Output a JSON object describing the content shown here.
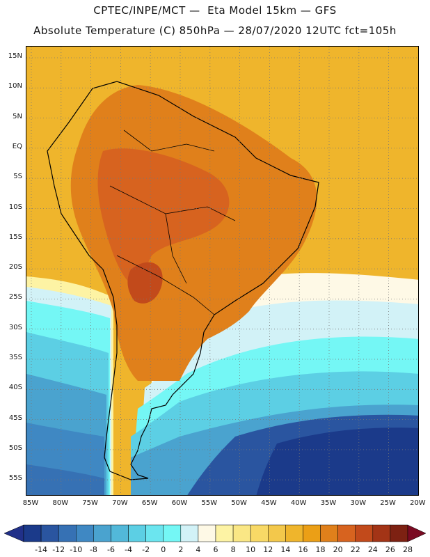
{
  "title_line1": "CPTEC/INPE/MCT —  Eta Model 15km — GFS",
  "title_line2": "Absolute Temperature (C) 850hPa — 28/07/2020 12UTC fct=105h",
  "lat_labels": [
    "15N",
    "10N",
    "5N",
    "EQ",
    "5S",
    "10S",
    "15S",
    "20S",
    "25S",
    "30S",
    "35S",
    "40S",
    "45S",
    "50S",
    "55S"
  ],
  "lon_labels": [
    "85W",
    "80W",
    "75W",
    "70W",
    "65W",
    "60W",
    "55W",
    "50W",
    "45W",
    "40W",
    "35W",
    "30W",
    "25W",
    "20W"
  ],
  "colorbar": {
    "ticks": [
      "-14",
      "-12",
      "-10",
      "-8",
      "-6",
      "-4",
      "-2",
      "0",
      "2",
      "4",
      "6",
      "8",
      "10",
      "12",
      "14",
      "16",
      "18",
      "20",
      "22",
      "24",
      "26",
      "28"
    ],
    "colors": [
      "#1b3a8a",
      "#2a55a0",
      "#3671b4",
      "#3f88c3",
      "#4aa3cf",
      "#52b8d9",
      "#5ccfe4",
      "#6be5ef",
      "#74f7f5",
      "#d2f2f7",
      "#fef9e6",
      "#fdf3a4",
      "#fae785",
      "#f8d966",
      "#f3c84b",
      "#efb52c",
      "#eb9f16",
      "#e0801b",
      "#d7631f",
      "#c24a1b",
      "#a33416",
      "#7d2112"
    ],
    "under_color": "#213089",
    "over_color": "#7a0a22"
  },
  "map": {
    "region": "South America",
    "lon_range": [
      -85,
      -20
    ],
    "lat_range": [
      -58,
      16
    ],
    "gridlines": true
  }
}
